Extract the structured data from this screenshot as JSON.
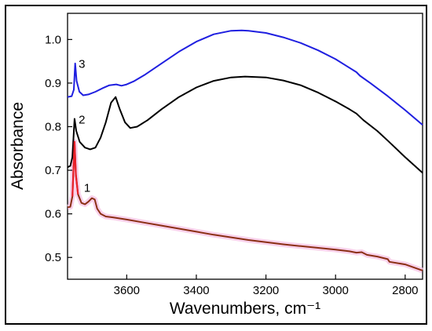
{
  "chart_data": {
    "type": "line",
    "xlabel": "Wavenumbers, cm⁻¹",
    "ylabel": "Absorbance",
    "xlim": [
      3770,
      2750
    ],
    "ylim": [
      0.45,
      1.06
    ],
    "x_reversed": true,
    "xticks": [
      3600,
      3400,
      3200,
      3000,
      2800
    ],
    "xtick_labels": [
      "3600",
      "3400",
      "3200",
      "3000",
      "2800"
    ],
    "yticks": [
      0.5,
      0.6,
      0.7,
      0.8,
      0.9,
      1.0
    ],
    "ytick_labels": [
      "0.5",
      "0.6",
      "0.7",
      "0.8",
      "0.9",
      "1.0"
    ],
    "grid": false,
    "series": [
      {
        "label": "3",
        "color": "#1f1fe0",
        "points": [
          [
            3770,
            0.868
          ],
          [
            3758,
            0.87
          ],
          [
            3752,
            0.885
          ],
          [
            3748,
            0.945
          ],
          [
            3744,
            0.905
          ],
          [
            3736,
            0.88
          ],
          [
            3725,
            0.872
          ],
          [
            3710,
            0.874
          ],
          [
            3690,
            0.88
          ],
          [
            3670,
            0.888
          ],
          [
            3650,
            0.895
          ],
          [
            3630,
            0.897
          ],
          [
            3615,
            0.894
          ],
          [
            3600,
            0.897
          ],
          [
            3580,
            0.904
          ],
          [
            3550,
            0.918
          ],
          [
            3500,
            0.945
          ],
          [
            3450,
            0.972
          ],
          [
            3400,
            0.995
          ],
          [
            3350,
            1.012
          ],
          [
            3300,
            1.02
          ],
          [
            3270,
            1.021
          ],
          [
            3250,
            1.02
          ],
          [
            3200,
            1.015
          ],
          [
            3150,
            1.005
          ],
          [
            3100,
            0.992
          ],
          [
            3050,
            0.975
          ],
          [
            3000,
            0.955
          ],
          [
            2970,
            0.94
          ],
          [
            2940,
            0.925
          ],
          [
            2930,
            0.917
          ],
          [
            2900,
            0.9
          ],
          [
            2850,
            0.87
          ],
          [
            2800,
            0.838
          ],
          [
            2750,
            0.804
          ]
        ]
      },
      {
        "label": "2",
        "color": "#000000",
        "points": [
          [
            3770,
            0.707
          ],
          [
            3762,
            0.71
          ],
          [
            3756,
            0.73
          ],
          [
            3750,
            0.818
          ],
          [
            3745,
            0.79
          ],
          [
            3735,
            0.765
          ],
          [
            3720,
            0.752
          ],
          [
            3705,
            0.748
          ],
          [
            3690,
            0.752
          ],
          [
            3675,
            0.775
          ],
          [
            3660,
            0.81
          ],
          [
            3645,
            0.855
          ],
          [
            3632,
            0.868
          ],
          [
            3620,
            0.84
          ],
          [
            3605,
            0.81
          ],
          [
            3590,
            0.797
          ],
          [
            3570,
            0.8
          ],
          [
            3540,
            0.815
          ],
          [
            3500,
            0.84
          ],
          [
            3450,
            0.868
          ],
          [
            3400,
            0.89
          ],
          [
            3350,
            0.905
          ],
          [
            3300,
            0.913
          ],
          [
            3260,
            0.915
          ],
          [
            3200,
            0.913
          ],
          [
            3150,
            0.906
          ],
          [
            3100,
            0.895
          ],
          [
            3050,
            0.878
          ],
          [
            3000,
            0.858
          ],
          [
            2960,
            0.84
          ],
          [
            2940,
            0.83
          ],
          [
            2920,
            0.815
          ],
          [
            2880,
            0.79
          ],
          [
            2850,
            0.768
          ],
          [
            2800,
            0.73
          ],
          [
            2750,
            0.694
          ]
        ]
      },
      {
        "label": "1",
        "color": "#8b2f14",
        "points": [
          [
            3770,
            0.615
          ],
          [
            3762,
            0.616
          ],
          [
            3756,
            0.64
          ],
          [
            3750,
            0.765
          ],
          [
            3746,
            0.69
          ],
          [
            3740,
            0.645
          ],
          [
            3730,
            0.625
          ],
          [
            3720,
            0.622
          ],
          [
            3710,
            0.628
          ],
          [
            3700,
            0.636
          ],
          [
            3692,
            0.633
          ],
          [
            3685,
            0.612
          ],
          [
            3675,
            0.6
          ],
          [
            3660,
            0.594
          ],
          [
            3640,
            0.592
          ],
          [
            3600,
            0.587
          ],
          [
            3550,
            0.58
          ],
          [
            3500,
            0.573
          ],
          [
            3450,
            0.566
          ],
          [
            3400,
            0.559
          ],
          [
            3350,
            0.552
          ],
          [
            3300,
            0.546
          ],
          [
            3250,
            0.54
          ],
          [
            3200,
            0.535
          ],
          [
            3150,
            0.53
          ],
          [
            3100,
            0.526
          ],
          [
            3050,
            0.522
          ],
          [
            3000,
            0.518
          ],
          [
            2960,
            0.514
          ],
          [
            2940,
            0.511
          ],
          [
            2925,
            0.512
          ],
          [
            2910,
            0.506
          ],
          [
            2880,
            0.502
          ],
          [
            2850,
            0.496
          ],
          [
            2845,
            0.49
          ],
          [
            2800,
            0.484
          ],
          [
            2750,
            0.47
          ]
        ]
      }
    ],
    "highlight_overlay": {
      "color": "#e8202a",
      "description_band_color": "#f6c6e6"
    }
  }
}
